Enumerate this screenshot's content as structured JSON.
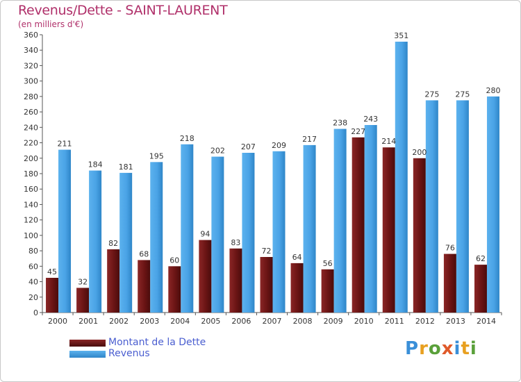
{
  "chart_data": {
    "type": "bar",
    "title": "Revenus/Dette - SAINT-LAURENT",
    "subtitle": "(en milliers d'€)",
    "categories": [
      "2000",
      "2001",
      "2002",
      "2003",
      "2004",
      "2005",
      "2006",
      "2007",
      "2008",
      "2009",
      "2010",
      "2011",
      "2012",
      "2013",
      "2014"
    ],
    "series": [
      {
        "name": "Montant de la Dette",
        "color": "#7a1a1a",
        "values": [
          45,
          32,
          82,
          68,
          60,
          94,
          83,
          72,
          64,
          56,
          227,
          214,
          200,
          76,
          62
        ]
      },
      {
        "name": "Revenus",
        "color": "#4aa3e6",
        "values": [
          211,
          184,
          181,
          195,
          218,
          202,
          207,
          209,
          217,
          238,
          243,
          351,
          275,
          275,
          280
        ]
      }
    ],
    "ylim": [
      0,
      360
    ],
    "ytick_step": 20,
    "grid": false,
    "legend_position": "bottom-left"
  },
  "brand": {
    "name": "Proxiti",
    "letter_colors": [
      "#3a8fd8",
      "#e8a020",
      "#5aa03a",
      "#e05a2a",
      "#3a8fd8",
      "#e8a020",
      "#5aa03a"
    ]
  }
}
